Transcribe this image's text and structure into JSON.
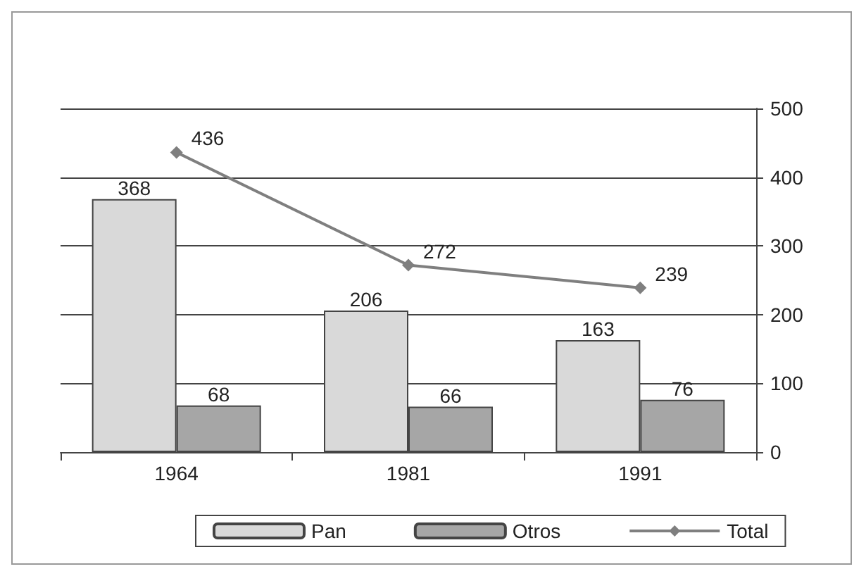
{
  "chart_data": {
    "type": "bar",
    "categories": [
      "1964",
      "1981",
      "1991"
    ],
    "series": [
      {
        "name": "Pan",
        "color": "#d9d9d9",
        "values": [
          368,
          206,
          163
        ]
      },
      {
        "name": "Otros",
        "color": "#a6a6a6",
        "values": [
          68,
          66,
          76
        ]
      },
      {
        "name": "Total",
        "type": "line",
        "color": "#7f7f7f",
        "values": [
          436,
          272,
          239
        ],
        "marker": "diamond"
      }
    ],
    "ylim": [
      0,
      500
    ],
    "yticks": [
      0,
      100,
      200,
      300,
      400,
      500
    ],
    "grid": "y",
    "legend": "bottom",
    "data_labels": true
  }
}
